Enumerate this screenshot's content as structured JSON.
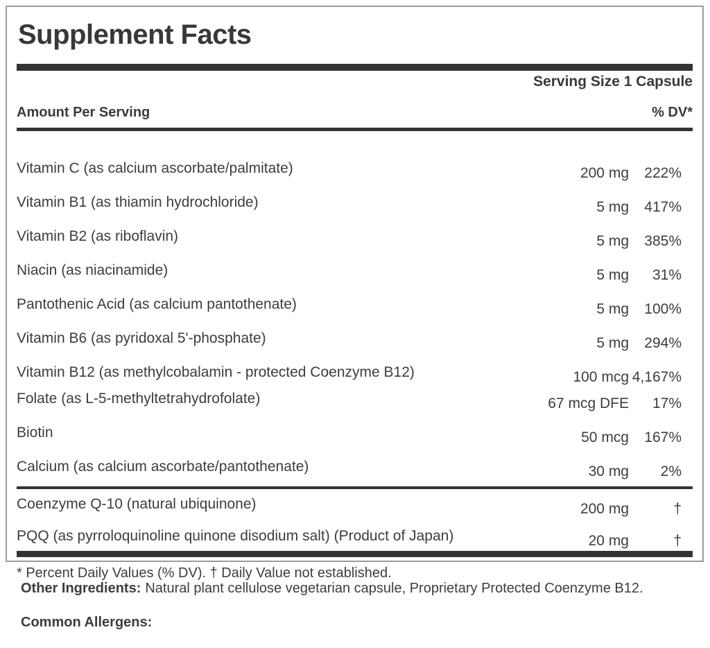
{
  "panel": {
    "title": "Supplement Facts",
    "serving_size": "Serving Size 1 Capsule",
    "columns": {
      "amount_header": "Amount Per Serving",
      "dv_header": "% DV*"
    },
    "rows": [
      {
        "label": "Vitamin C (as calcium ascorbate/palmitate)",
        "amount": "200 mg",
        "dv": "222%"
      },
      {
        "label": "Vitamin B1 (as thiamin hydrochloride)",
        "amount": "5 mg",
        "dv": "417%"
      },
      {
        "label": "Vitamin B2 (as riboflavin)",
        "amount": "5 mg",
        "dv": "385%"
      },
      {
        "label": "Niacin (as niacinamide)",
        "amount": "5 mg",
        "dv": "31%"
      },
      {
        "label": "Pantothenic Acid (as calcium pantothenate)",
        "amount": "5 mg",
        "dv": "100%"
      },
      {
        "label": "Vitamin B6 (as pyridoxal 5'-phosphate)",
        "amount": "5 mg",
        "dv": "294%"
      },
      {
        "label": "Vitamin B12 (as methylcobalamin - protected Coenzyme B12)",
        "amount": "100 mcg",
        "dv": "4,167%"
      },
      {
        "label": "Folate (as L-5-methyltetrahydrofolate)",
        "amount": "67 mcg DFE",
        "dv": "17%"
      },
      {
        "label": "Biotin",
        "amount": "50 mcg",
        "dv": "167%"
      },
      {
        "label": "Calcium (as calcium ascorbate/pantothenate)",
        "amount": "30 mg",
        "dv": "2%"
      },
      {
        "label": "Coenzyme Q-10 (natural ubiquinone)",
        "amount": "200 mg",
        "dv": "†"
      },
      {
        "label": "PQQ (as pyrroloquinoline quinone disodium salt) (Product of Japan)",
        "amount": "20 mg",
        "dv": "†"
      }
    ],
    "footnote": "* Percent Daily Values (% DV). † Daily Value not established."
  },
  "below": {
    "other_ingredients_label": "Other Ingredients:",
    "other_ingredients_text": "Natural plant cellulose vegetarian capsule, Proprietary Protected Coenzyme B12.",
    "common_allergens_label": "Common Allergens:"
  },
  "colors": {
    "text": "#3d3d3d",
    "title": "#383838",
    "bar": "#333333",
    "box_border": "#9c9c9c",
    "background": "#ffffff"
  }
}
